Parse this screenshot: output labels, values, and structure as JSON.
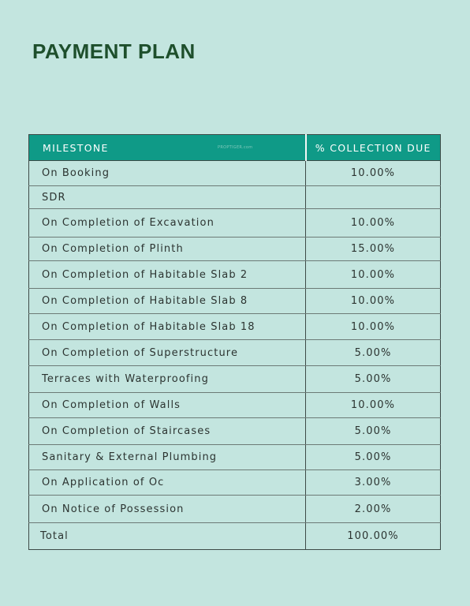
{
  "title": "PAYMENT PLAN",
  "table": {
    "headers": {
      "milestone": "MILESTONE",
      "due": "% COLLECTION DUE"
    },
    "watermark": "PROPTIGER.com",
    "rows": [
      {
        "milestone": "On Booking",
        "due": "10.00%"
      },
      {
        "milestone": "SDR",
        "due": ""
      },
      {
        "milestone": "On Completion of Excavation",
        "due": "10.00%"
      },
      {
        "milestone": "On Completion of Plinth",
        "due": "15.00%"
      },
      {
        "milestone": "On Completion of Habitable Slab 2",
        "due": "10.00%"
      },
      {
        "milestone": "On Completion of Habitable Slab 8",
        "due": "10.00%"
      },
      {
        "milestone": "On Completion of Habitable Slab 18",
        "due": "10.00%"
      },
      {
        "milestone": "On Completion of Superstructure",
        "due": "5.00%"
      },
      {
        "milestone": "Terraces with Waterproofing",
        "due": "5.00%"
      },
      {
        "milestone": "On Completion of Walls",
        "due": "10.00%"
      },
      {
        "milestone": "On Completion of Staircases",
        "due": "5.00%"
      },
      {
        "milestone": "Sanitary & External Plumbing",
        "due": "5.00%"
      },
      {
        "milestone": "On Application of Oc",
        "due": "3.00%"
      },
      {
        "milestone": "On Notice of Possession",
        "due": "2.00%"
      }
    ],
    "total": {
      "label": "Total",
      "due": "100.00%"
    }
  },
  "colors": {
    "background": "#c3e5df",
    "header": "#0f9a87",
    "title": "#1e4f2c"
  }
}
